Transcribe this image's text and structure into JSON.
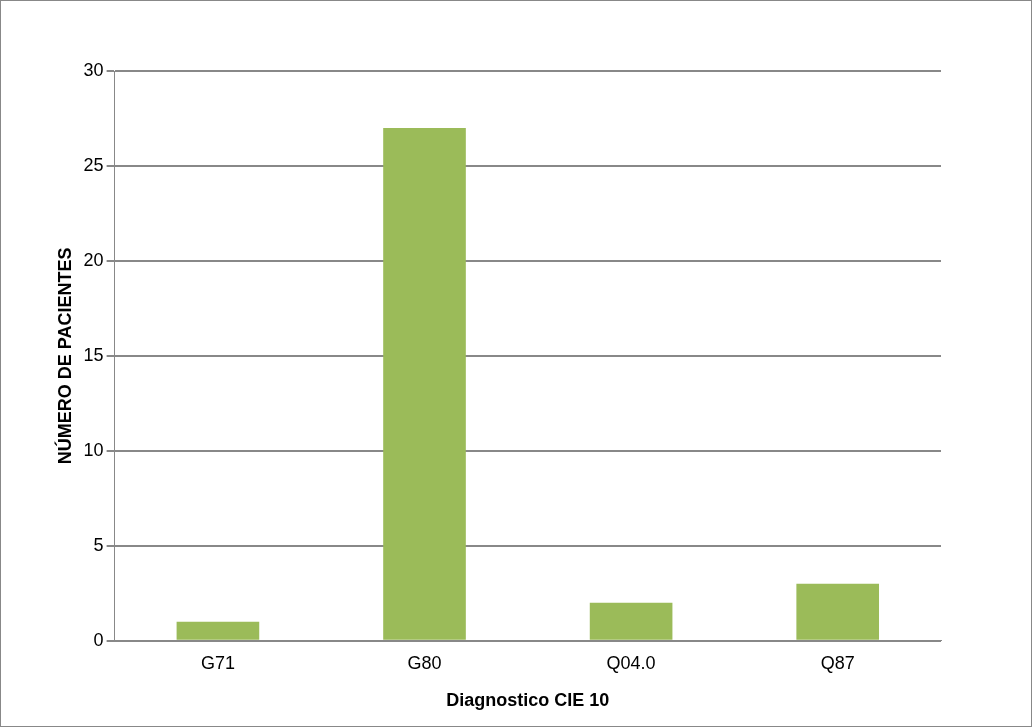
{
  "chart_data": {
    "type": "bar",
    "xlabel": "Diagnostico CIE 10",
    "ylabel": "NÚMERO DE PACIENTES",
    "categories": [
      "G71",
      "G80",
      "Q04.0",
      "Q87"
    ],
    "values": [
      1,
      27,
      2,
      3
    ],
    "color": "#9bbb59",
    "ylim": [
      0,
      30
    ],
    "yticks": [
      0,
      5,
      10,
      15,
      20,
      25,
      30
    ],
    "grid": "y"
  }
}
